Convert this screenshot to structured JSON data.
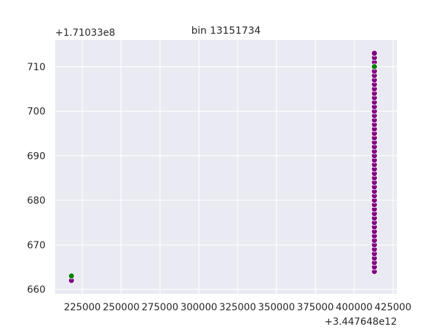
{
  "chart_data": {
    "type": "scatter",
    "title": "bin 13151734",
    "xlabel": "",
    "ylabel": "",
    "x_offset_label": "+3.447648e12",
    "y_offset_label": "+1.71033e8",
    "xlim": [
      207500,
      427500
    ],
    "ylim": [
      659,
      716
    ],
    "grid": true,
    "legend": false,
    "x_ticks": [
      225000,
      250000,
      275000,
      300000,
      325000,
      350000,
      375000,
      400000,
      425000
    ],
    "x_tick_labels": [
      "225000",
      "250000",
      "275000",
      "300000",
      "325000",
      "350000",
      "375000",
      "400000",
      "425000"
    ],
    "y_ticks": [
      660,
      670,
      680,
      690,
      700,
      710
    ],
    "y_tick_labels": [
      "660",
      "670",
      "680",
      "690",
      "700",
      "710"
    ],
    "colors": {
      "background": "#eaeaf2",
      "grid": "#ffffff",
      "purple": "#800080",
      "green": "#008000",
      "marker_edge": "#ffffff"
    },
    "series": [
      {
        "color": "purple",
        "points": [
          {
            "x": 218000,
            "y": 662
          },
          {
            "x": 413000,
            "y": 664
          },
          {
            "x": 413000,
            "y": 665
          },
          {
            "x": 413000,
            "y": 666
          },
          {
            "x": 413000,
            "y": 667
          },
          {
            "x": 413000,
            "y": 668
          },
          {
            "x": 413000,
            "y": 669
          },
          {
            "x": 413000,
            "y": 670
          },
          {
            "x": 413000,
            "y": 671
          },
          {
            "x": 413000,
            "y": 672
          },
          {
            "x": 413000,
            "y": 673
          },
          {
            "x": 413000,
            "y": 674
          },
          {
            "x": 413000,
            "y": 675
          },
          {
            "x": 413000,
            "y": 676
          },
          {
            "x": 413000,
            "y": 677
          },
          {
            "x": 413000,
            "y": 678
          },
          {
            "x": 413000,
            "y": 679
          },
          {
            "x": 413000,
            "y": 680
          },
          {
            "x": 413000,
            "y": 681
          },
          {
            "x": 413000,
            "y": 682
          },
          {
            "x": 413000,
            "y": 683
          },
          {
            "x": 413000,
            "y": 684
          },
          {
            "x": 413000,
            "y": 685
          },
          {
            "x": 413000,
            "y": 686
          },
          {
            "x": 413000,
            "y": 687
          },
          {
            "x": 413000,
            "y": 688
          },
          {
            "x": 413000,
            "y": 689
          },
          {
            "x": 413000,
            "y": 690
          },
          {
            "x": 413000,
            "y": 691
          },
          {
            "x": 413000,
            "y": 692
          },
          {
            "x": 413000,
            "y": 693
          },
          {
            "x": 413000,
            "y": 694
          },
          {
            "x": 413000,
            "y": 695
          },
          {
            "x": 413000,
            "y": 696
          },
          {
            "x": 413000,
            "y": 697
          },
          {
            "x": 413000,
            "y": 698
          },
          {
            "x": 413000,
            "y": 699
          },
          {
            "x": 413000,
            "y": 700
          },
          {
            "x": 413000,
            "y": 701
          },
          {
            "x": 413000,
            "y": 702
          },
          {
            "x": 413000,
            "y": 703
          },
          {
            "x": 413000,
            "y": 704
          },
          {
            "x": 413000,
            "y": 705
          },
          {
            "x": 413000,
            "y": 706
          },
          {
            "x": 413000,
            "y": 707
          },
          {
            "x": 413000,
            "y": 708
          },
          {
            "x": 413000,
            "y": 709
          },
          {
            "x": 413000,
            "y": 711
          },
          {
            "x": 413000,
            "y": 712
          },
          {
            "x": 413000,
            "y": 713
          }
        ]
      },
      {
        "color": "green",
        "points": [
          {
            "x": 218000,
            "y": 663
          },
          {
            "x": 413000,
            "y": 710
          }
        ]
      }
    ]
  }
}
